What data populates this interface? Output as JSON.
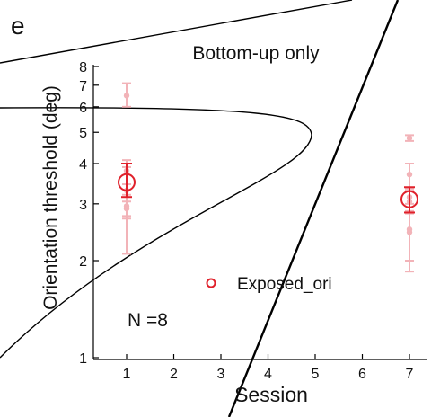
{
  "panel_label": "e",
  "chart_data": {
    "type": "scatter",
    "title": "Bottom-up only",
    "xlabel": "Session",
    "ylabel": "Orientation threshold (deg)",
    "x_ticks": [
      1,
      2,
      3,
      4,
      5,
      6,
      7
    ],
    "y_scale": "log",
    "y_ticks": [
      1,
      2,
      3,
      4,
      5,
      6,
      7,
      8
    ],
    "xlim": [
      0.4,
      7.6
    ],
    "ylim": [
      1,
      8.4
    ],
    "annotation": "N =8",
    "legend": {
      "label": "Exposed_ori",
      "position": "inside-right"
    },
    "colors": {
      "mean": "#e0212b",
      "individual": "#f2b3b8"
    },
    "series": [
      {
        "name": "Exposed_ori",
        "mean": [
          {
            "x": 1,
            "y": 3.5,
            "err_low": 3.15,
            "err_high": 4.0
          },
          {
            "x": 7,
            "y": 3.1,
            "err_low": 2.82,
            "err_high": 3.38
          }
        ],
        "individual": [
          {
            "x": 1,
            "y": 6.5,
            "err_low": 6.0,
            "err_high": 7.1
          },
          {
            "x": 1,
            "y": 3.8,
            "err_low": 3.45,
            "err_high": 4.1
          },
          {
            "x": 1,
            "y": 3.3,
            "err_low": 2.1,
            "err_high": 3.9
          },
          {
            "x": 1,
            "y": 2.95,
            "err_low": 2.75,
            "err_high": 3.2
          },
          {
            "x": 1,
            "y": 2.9,
            "err_low": 2.7,
            "err_high": 3.05
          },
          {
            "x": 7,
            "y": 4.8,
            "err_low": 4.7,
            "err_high": 4.9
          },
          {
            "x": 7,
            "y": 3.7,
            "err_low": 3.35,
            "err_high": 4.0
          },
          {
            "x": 7,
            "y": 3.15,
            "err_low": 2.85,
            "err_high": 3.35
          },
          {
            "x": 7,
            "y": 3.05,
            "err_low": 2.8,
            "err_high": 3.35
          },
          {
            "x": 7,
            "y": 2.5,
            "err_low": 2.0,
            "err_high": 3.3
          },
          {
            "x": 7,
            "y": 2.45,
            "err_low": 1.85,
            "err_high": 3.0
          }
        ]
      }
    ]
  }
}
